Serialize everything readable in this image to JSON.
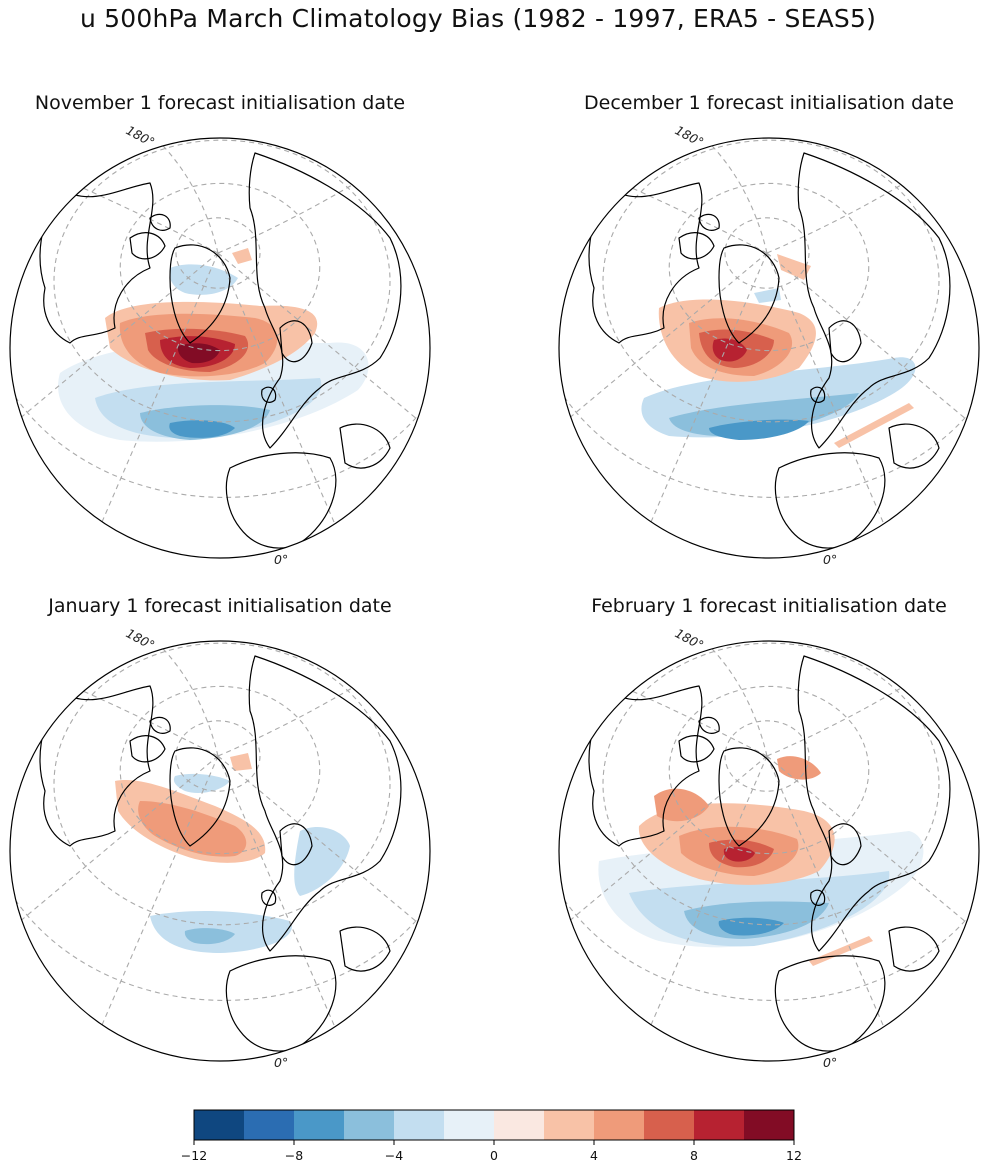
{
  "figure": {
    "title": "u 500hPa March Climatology Bias (1982 - 1997, ERA5 - SEAS5)"
  },
  "panels": [
    {
      "title": "November 1 forecast initialisation date",
      "lon_top": "180°",
      "lon_bottom": "0°"
    },
    {
      "title": "December 1 forecast initialisation date",
      "lon_top": "180°",
      "lon_bottom": "0°"
    },
    {
      "title": "January 1 forecast initialisation date",
      "lon_top": "180°",
      "lon_bottom": "0°"
    },
    {
      "title": "February 1 forecast initialisation date",
      "lon_top": "180°",
      "lon_bottom": "0°"
    }
  ],
  "colorbar": {
    "levels": [
      -12,
      -10,
      -8,
      -6,
      -4,
      -2,
      0,
      2,
      4,
      6,
      8,
      10,
      12
    ],
    "tick_labels": [
      "−12",
      "−8",
      "−4",
      "0",
      "4",
      "8",
      "12"
    ],
    "colors": [
      "#0f4780",
      "#2b6db2",
      "#4a98c8",
      "#8bbfdc",
      "#c3def0",
      "#e7f1f8",
      "#fae8e1",
      "#f8c2a7",
      "#ef9b7a",
      "#d7604d",
      "#b72231",
      "#820c25"
    ]
  }
}
